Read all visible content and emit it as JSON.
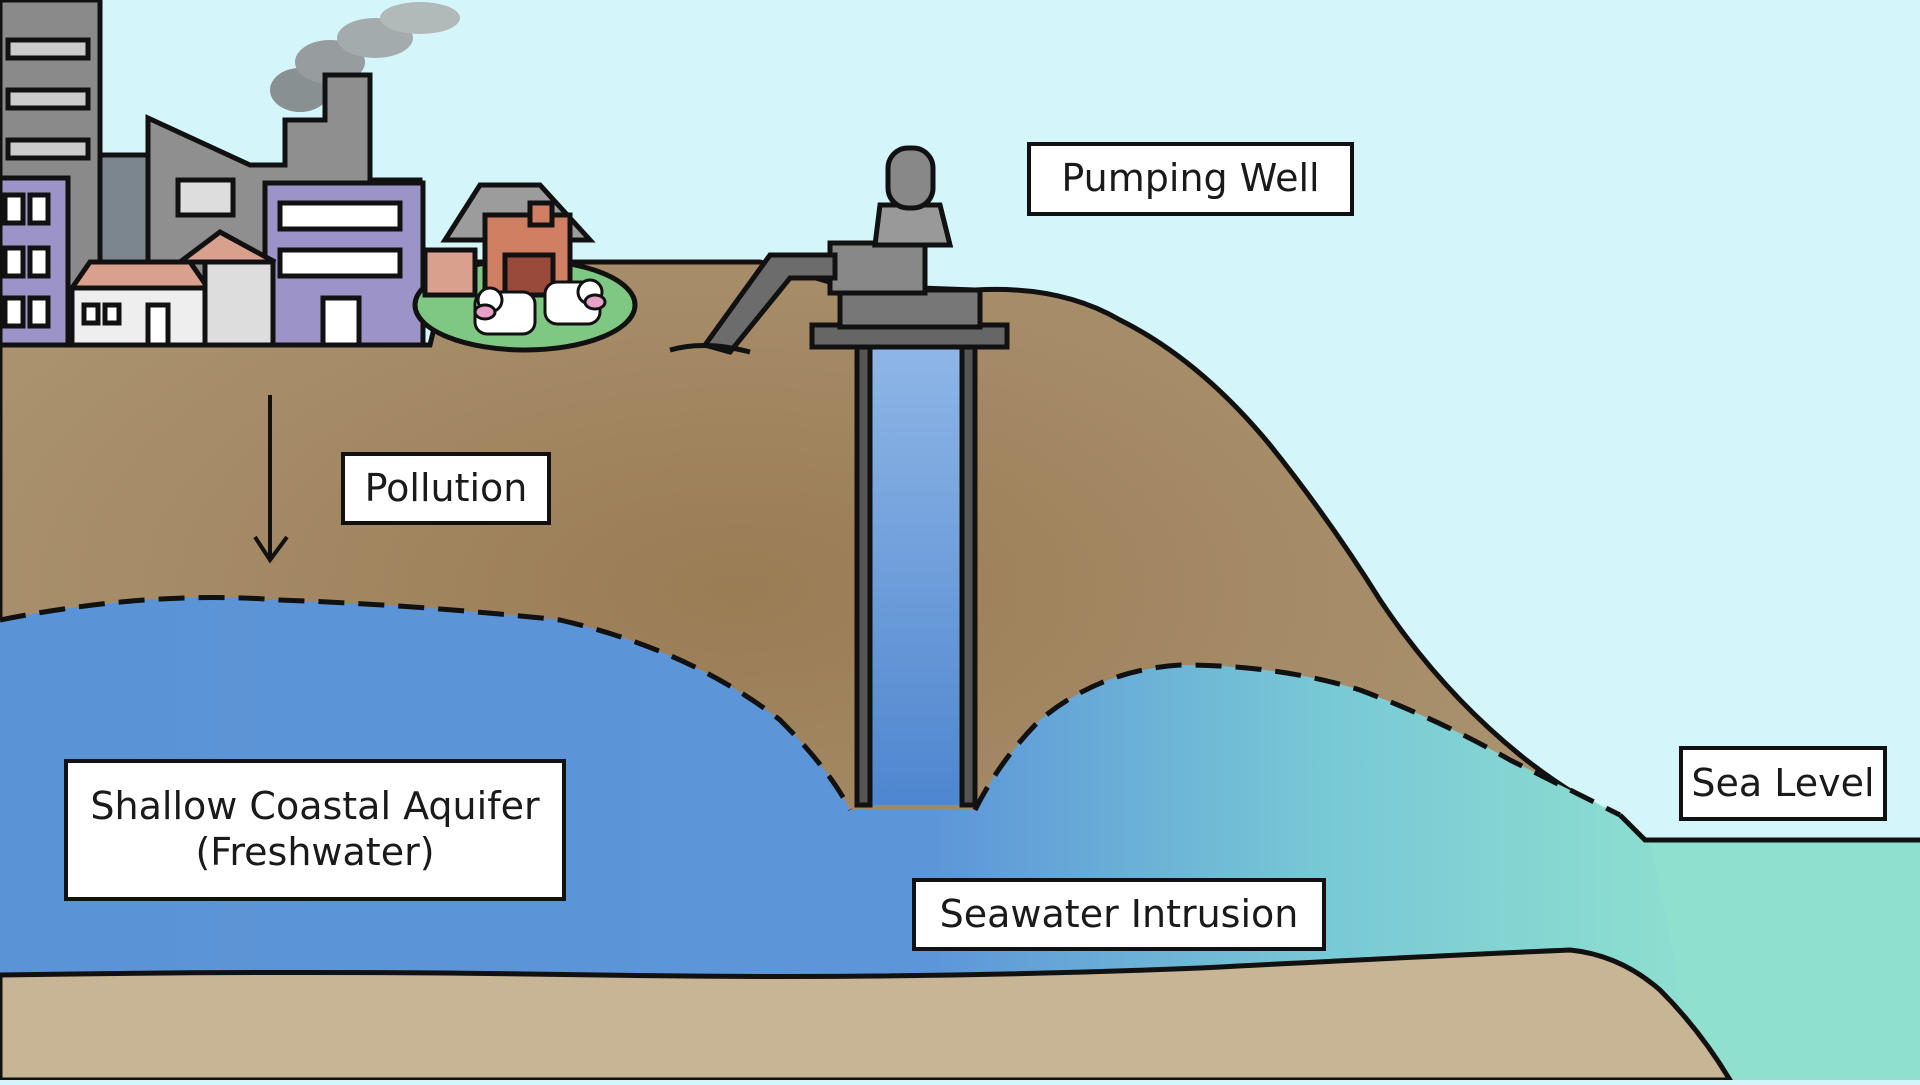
{
  "labels": {
    "pumping_well": "Pumping Well",
    "pollution": "Pollution",
    "aquifer_line1": "Shallow Coastal Aquifer",
    "aquifer_line2": "(Freshwater)",
    "seawater_intrusion": "Seawater Intrusion",
    "sea_level": "Sea Level"
  },
  "colors": {
    "sky": "#d4f6fa",
    "soil": "#a88e6a",
    "soil_dark": "#8c7050",
    "bedrock": "#c8b596",
    "freshwater": "#5b94d6",
    "seawater": "#7fd9cc",
    "outline": "#111111"
  }
}
